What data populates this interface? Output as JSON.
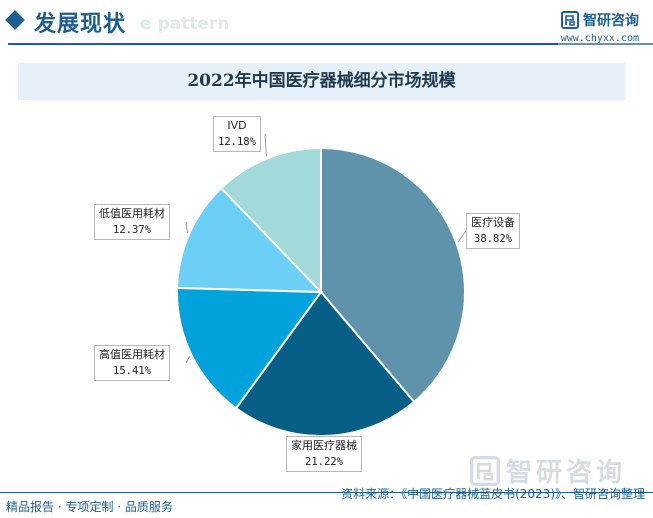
{
  "header": {
    "section_title": "发展现状",
    "ghost_text": "e pattern",
    "brand_name": "智研咨询",
    "site_url": "www.chyxx.com"
  },
  "chart_data": {
    "type": "pie",
    "title": "2022年中国医疗器械细分市场规模",
    "categories": [
      "医疗设备",
      "家用医疗器械",
      "高值医用耗材",
      "低值医用耗材",
      "IVD"
    ],
    "values": [
      38.82,
      21.22,
      15.41,
      12.37,
      12.18
    ],
    "value_labels": [
      "38.82%",
      "21.22%",
      "15.41%",
      "12.37%",
      "12.18%"
    ],
    "colors": [
      "#5f93ab",
      "#075e86",
      "#02a3dd",
      "#6ccff6",
      "#a2dada"
    ],
    "start_angle_deg": 0,
    "direction": "clockwise",
    "legend": "none"
  },
  "footer": {
    "left_text": "精品报告 · 专项定制 · 品质服务",
    "source_text": "资料来源：《中国医疗器械蓝皮书(2023)》、智研咨询整理",
    "watermark_brand": "智研咨询"
  }
}
